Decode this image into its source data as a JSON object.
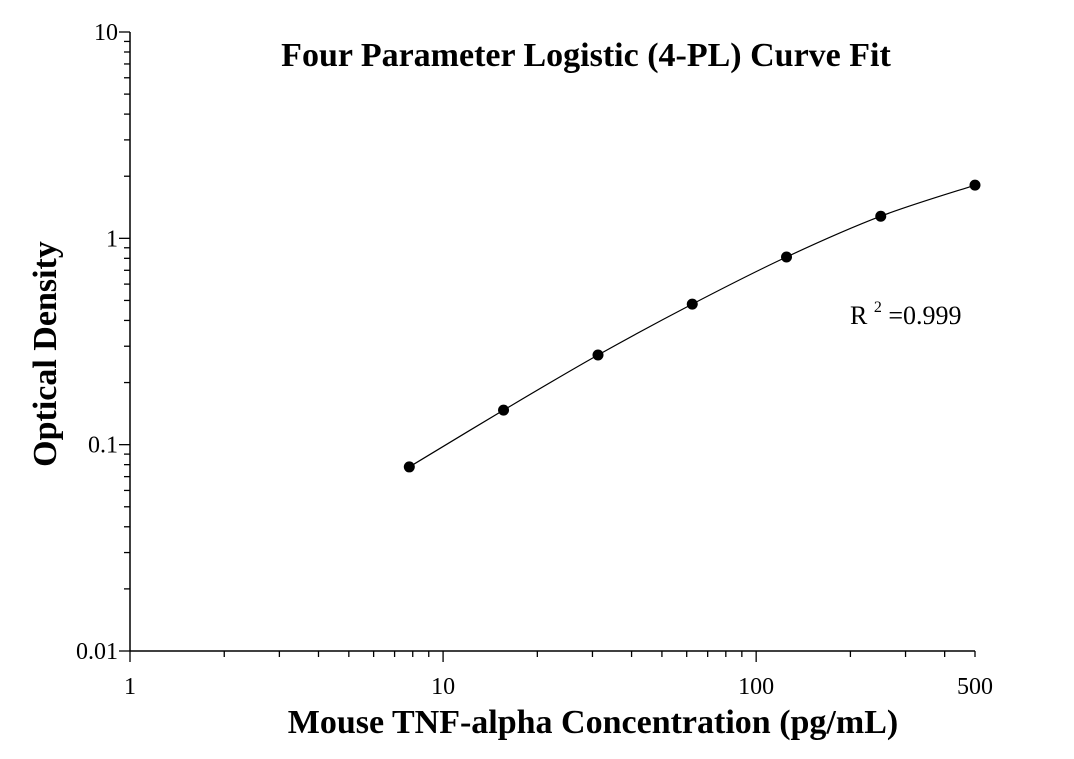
{
  "chart_data": {
    "type": "scatter",
    "title": "Four Parameter Logistic (4-PL) Curve Fit",
    "xlabel": "Mouse TNF-alpha Concentration (pg/mL)",
    "ylabel": "Optical Density",
    "xscale": "log",
    "yscale": "log",
    "xlim": [
      1,
      500
    ],
    "ylim": [
      0.01,
      10
    ],
    "x_ticks": [
      {
        "value": 1,
        "label": "1"
      },
      {
        "value": 10,
        "label": "10"
      },
      {
        "value": 100,
        "label": "100"
      },
      {
        "value": 500,
        "label": "500"
      }
    ],
    "y_ticks": [
      {
        "value": 0.01,
        "label": "0.01"
      },
      {
        "value": 0.1,
        "label": "0.1"
      },
      {
        "value": 1,
        "label": "1"
      },
      {
        "value": 10,
        "label": "10"
      }
    ],
    "grid": false,
    "series": [
      {
        "points": [
          {
            "x": 7.8,
            "y": 0.078
          },
          {
            "x": 15.6,
            "y": 0.147
          },
          {
            "x": 31.25,
            "y": 0.272
          },
          {
            "x": 62.5,
            "y": 0.48
          },
          {
            "x": 125,
            "y": 0.812
          },
          {
            "x": 250,
            "y": 1.28
          },
          {
            "x": 500,
            "y": 1.81
          }
        ],
        "marker": "circle",
        "color": "#000000",
        "fit_line": "4-PL curve"
      }
    ],
    "annotations": [
      {
        "text_main": "R",
        "superscript": "2",
        "text_rest": "=0.999"
      }
    ]
  }
}
